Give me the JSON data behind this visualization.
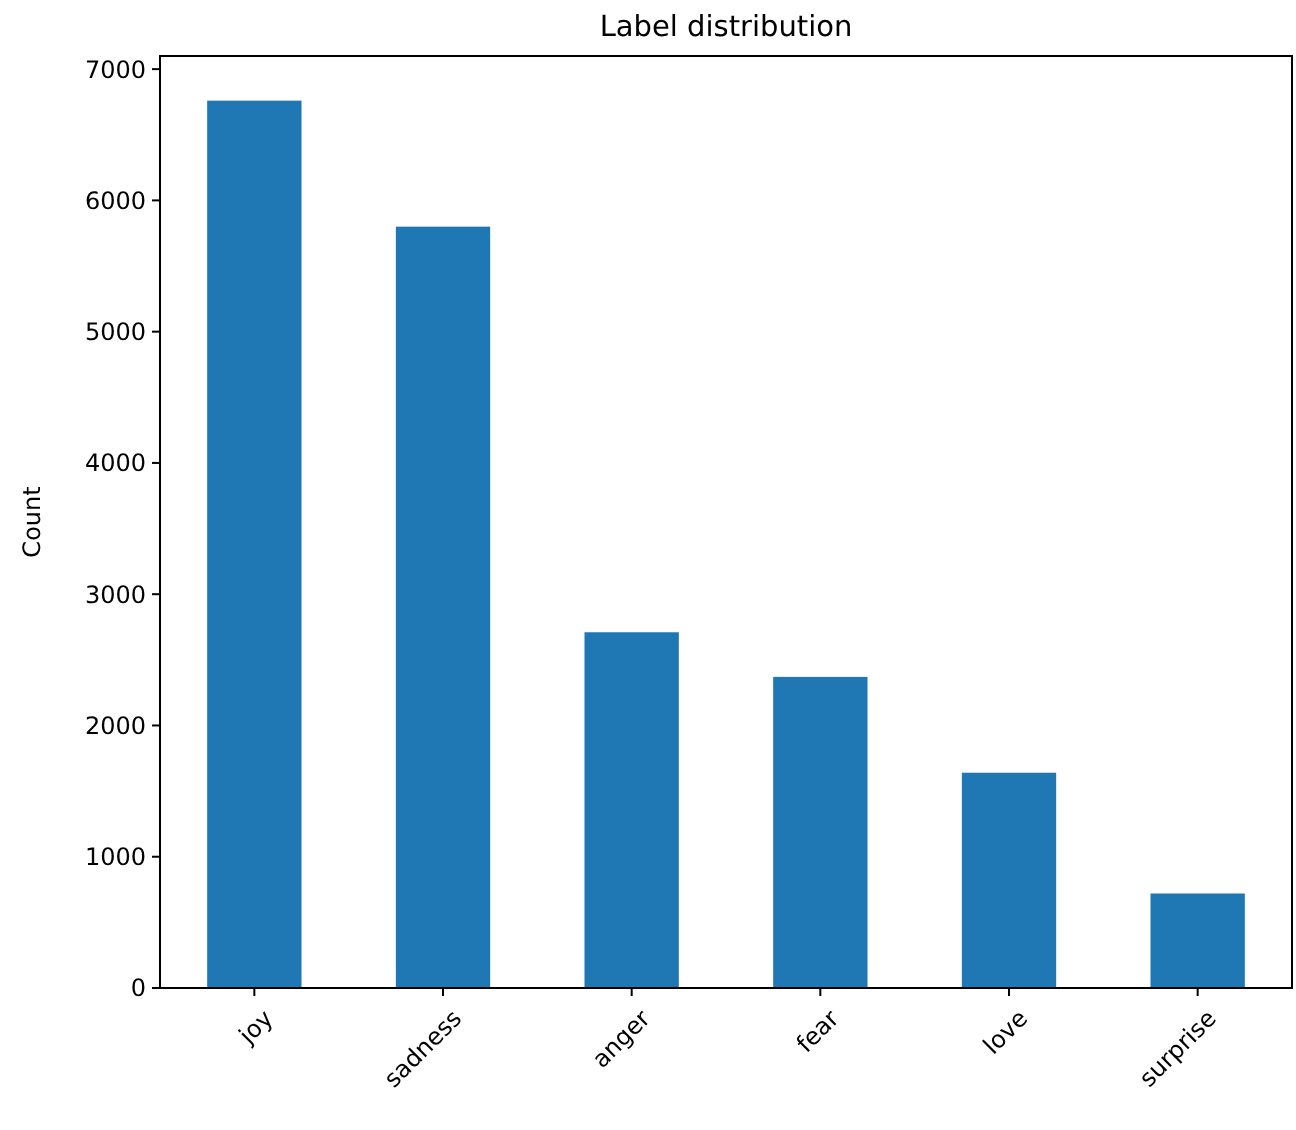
{
  "chart_data": {
    "type": "bar",
    "title": "Label distribution",
    "ylabel": "Count",
    "categories": [
      "joy",
      "sadness",
      "anger",
      "fear",
      "love",
      "surprise"
    ],
    "values": [
      6760,
      5800,
      2710,
      2370,
      1640,
      720
    ],
    "color": "#1f77b4",
    "ylim": [
      0,
      7100
    ],
    "yticks": [
      0,
      1000,
      2000,
      3000,
      4000,
      5000,
      6000,
      7000
    ],
    "grid": false
  }
}
